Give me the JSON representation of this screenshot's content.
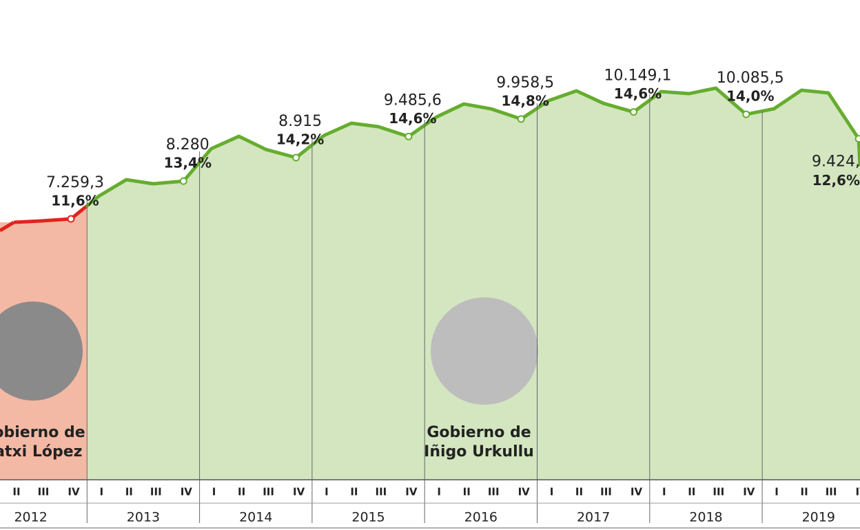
{
  "chart_data": {
    "type": "line",
    "categories": [
      "II",
      "III",
      "IV",
      "I",
      "II",
      "III",
      "IV",
      "I",
      "II",
      "III",
      "IV",
      "I",
      "II",
      "III",
      "IV",
      "I",
      "II",
      "III",
      "IV",
      "I",
      "II",
      "III",
      "IV",
      "I",
      "II",
      "III",
      "IV",
      "I",
      "II",
      "III",
      "IV"
    ],
    "years": [
      "2012",
      "2013",
      "2014",
      "2015",
      "2016",
      "2017",
      "2018",
      "2019"
    ],
    "values": [
      7166,
      7204,
      7259.3,
      7873,
      8319,
      8208,
      8280,
      9157,
      9491,
      9138,
      8915,
      9510,
      9845,
      9752,
      9485.6,
      10012,
      10365,
      10235,
      9958.5,
      10458,
      10719,
      10384,
      10149.1,
      10700,
      10645,
      10793,
      10085.5,
      10235,
      10737,
      10663,
      9424
    ],
    "value_labels": [
      null,
      null,
      "7.259,3",
      null,
      null,
      null,
      "8.280",
      null,
      null,
      null,
      "8.915",
      null,
      null,
      null,
      "9.485,6",
      null,
      null,
      null,
      "9.958,5",
      null,
      null,
      null,
      "10.149,1",
      null,
      null,
      null,
      "10.085,5",
      null,
      null,
      null,
      "9.424,"
    ],
    "shares": [
      null,
      null,
      11.6,
      null,
      null,
      null,
      13.4,
      null,
      null,
      null,
      14.2,
      null,
      null,
      null,
      14.6,
      null,
      null,
      null,
      14.8,
      null,
      null,
      null,
      14.6,
      null,
      null,
      null,
      14.0,
      null,
      null,
      null,
      12.6
    ],
    "share_labels": [
      null,
      null,
      "11,6%",
      null,
      null,
      null,
      "13,4%",
      null,
      null,
      null,
      "14,2%",
      null,
      null,
      null,
      "14,6%",
      null,
      null,
      null,
      "14,8%",
      null,
      null,
      null,
      "14,6%",
      null,
      null,
      null,
      "14,0%",
      null,
      null,
      null,
      "12,6%"
    ],
    "periods": [
      {
        "name": [
          "Gobierno de",
          "Patxi López"
        ],
        "color": "#e0241c",
        "area_color": "#f4b9a4",
        "first": 0,
        "last": 2
      },
      {
        "name": [
          "Gobierno de",
          "Iñigo Urkullu"
        ],
        "color": "#66ad2e",
        "area_color": "#d3e6c0",
        "first": 3,
        "last": 30
      }
    ],
    "ylim": [
      210,
      13175
    ]
  }
}
